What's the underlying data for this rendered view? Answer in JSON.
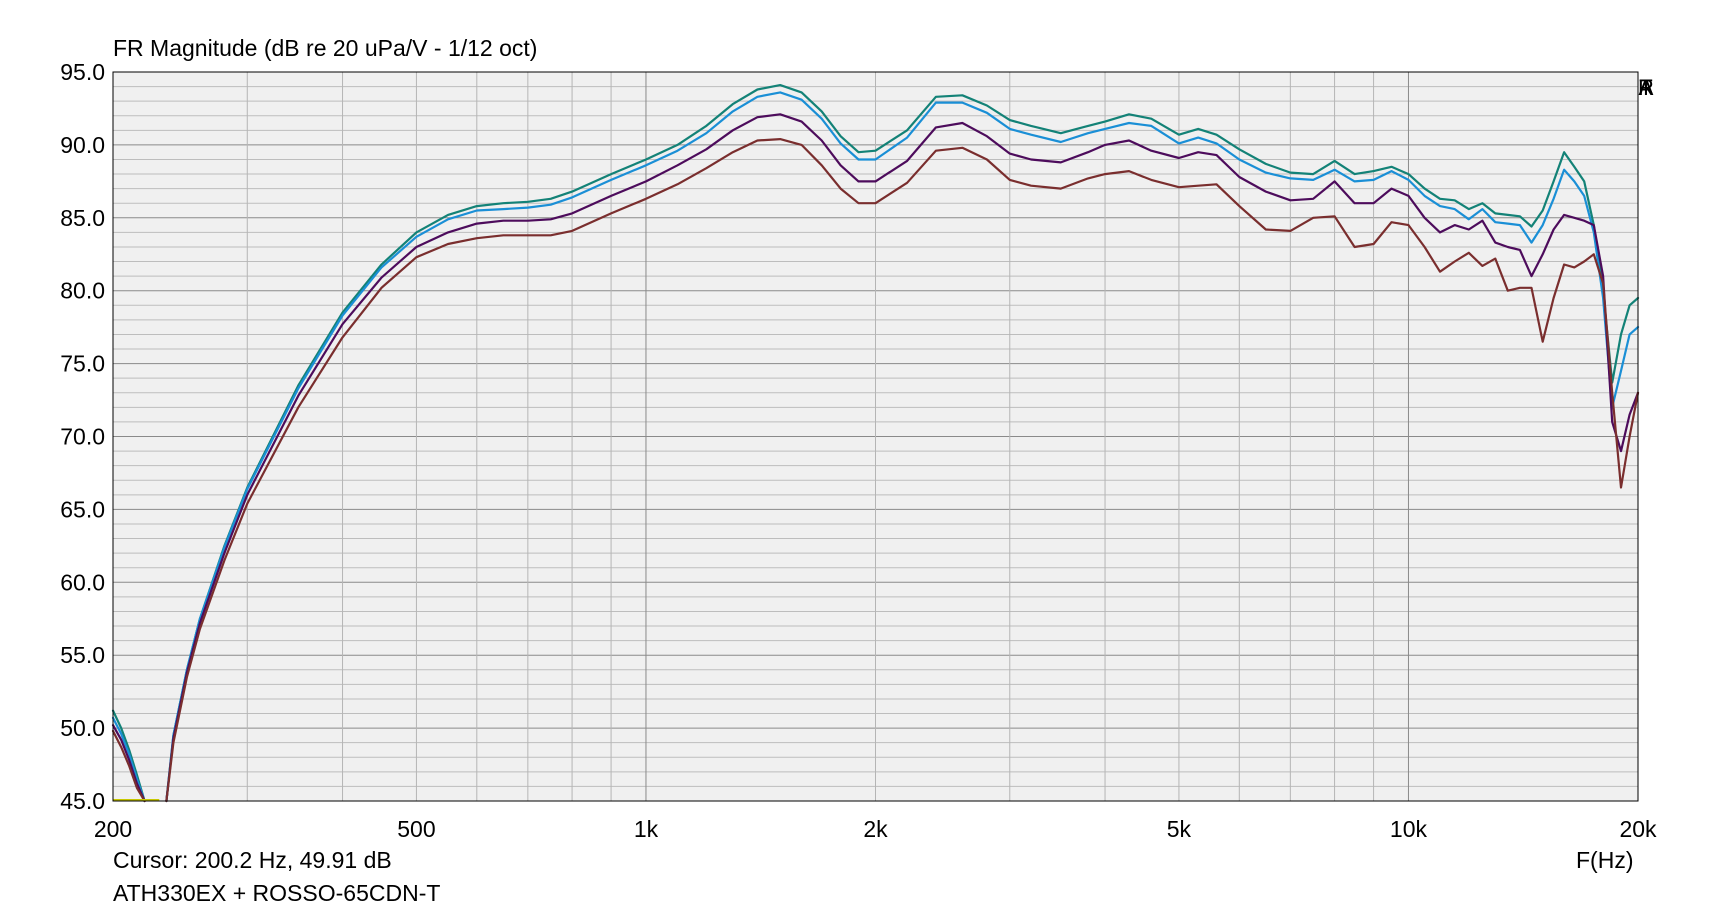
{
  "window": {
    "title": "FR Magnitude (dB re 20 uPa/V - 1/12 oct)",
    "cursor_readout": "Cursor: 200.2 Hz, 49.91 dB",
    "device_label": "ATH330EX + ROSSO-65CDN-T",
    "brand_letters": [
      "A",
      "R",
      "T",
      "A"
    ]
  },
  "chart_data": {
    "type": "line",
    "title": "FR Magnitude (dB re 20 uPa/V - 1/12 oct)",
    "xlabel": "F(Hz)",
    "ylabel": "",
    "x_scale": "log",
    "xlim": [
      200,
      20000
    ],
    "ylim": [
      45,
      95
    ],
    "grid": true,
    "x_ticks": [
      {
        "value": 200,
        "label": "200"
      },
      {
        "value": 500,
        "label": "500"
      },
      {
        "value": 1000,
        "label": "1k"
      },
      {
        "value": 2000,
        "label": "2k"
      },
      {
        "value": 5000,
        "label": "5k"
      },
      {
        "value": 10000,
        "label": "10k"
      },
      {
        "value": 20000,
        "label": "20k"
      }
    ],
    "y_ticks": [
      {
        "value": 95,
        "label": "95.0"
      },
      {
        "value": 90,
        "label": "90.0"
      },
      {
        "value": 85,
        "label": "85.0"
      },
      {
        "value": 80,
        "label": "80.0"
      },
      {
        "value": 75,
        "label": "75.0"
      },
      {
        "value": 70,
        "label": "70.0"
      },
      {
        "value": 65,
        "label": "65.0"
      },
      {
        "value": 60,
        "label": "60.0"
      },
      {
        "value": 55,
        "label": "55.0"
      },
      {
        "value": 50,
        "label": "50.0"
      },
      {
        "value": 45,
        "label": "45.0"
      }
    ],
    "cursor_marker": {
      "x": [
        200,
        230
      ],
      "y": 45,
      "color": "#c8c800"
    },
    "series": [
      {
        "color": "#138277",
        "low_segment": {
          "x": [
            200,
            205,
            210,
            215,
            220
          ],
          "y": [
            51.2,
            50.0,
            48.5,
            46.8,
            45
          ]
        },
        "x": [
          235,
          240,
          250,
          260,
          280,
          300,
          350,
          400,
          450,
          500,
          550,
          600,
          650,
          700,
          750,
          800,
          900,
          1000,
          1100,
          1200,
          1300,
          1400,
          1500,
          1600,
          1700,
          1800,
          1900,
          2000,
          2200,
          2400,
          2600,
          2800,
          3000,
          3200,
          3500,
          3800,
          4000,
          4300,
          4600,
          5000,
          5300,
          5600,
          6000,
          6500,
          7000,
          7500,
          8000,
          8500,
          9000,
          9500,
          10000,
          10500,
          11000,
          11500,
          12000,
          12500,
          13000,
          13500,
          14000,
          14500,
          15000,
          15500,
          16000,
          16500,
          17000,
          17500,
          18000,
          18500,
          19000,
          19500,
          20000
        ],
        "y": [
          45,
          49.5,
          54,
          57.5,
          62.5,
          66.5,
          73.5,
          78.5,
          81.8,
          84.0,
          85.2,
          85.8,
          86.0,
          86.1,
          86.3,
          86.8,
          88.0,
          89.0,
          90.0,
          91.3,
          92.8,
          93.8,
          94.1,
          93.6,
          92.3,
          90.6,
          89.5,
          89.6,
          91.0,
          93.3,
          93.4,
          92.7,
          91.7,
          91.3,
          90.8,
          91.3,
          91.6,
          92.1,
          91.8,
          90.7,
          91.1,
          90.7,
          89.7,
          88.7,
          88.1,
          88.0,
          88.9,
          88.0,
          88.2,
          88.5,
          88.0,
          87.0,
          86.3,
          86.2,
          85.6,
          86.0,
          85.3,
          85.2,
          85.1,
          84.4,
          85.5,
          87.5,
          89.5,
          88.5,
          87.5,
          84.5,
          80.0,
          73.7,
          77.0,
          79.0,
          79.5
        ]
      },
      {
        "color": "#1a8fd6",
        "low_segment": {
          "x": [
            200,
            205,
            210,
            215,
            220
          ],
          "y": [
            50.7,
            49.6,
            48.2,
            46.5,
            45
          ]
        },
        "x": [
          235,
          240,
          250,
          260,
          280,
          300,
          350,
          400,
          450,
          500,
          550,
          600,
          650,
          700,
          750,
          800,
          900,
          1000,
          1100,
          1200,
          1300,
          1400,
          1500,
          1600,
          1700,
          1800,
          1900,
          2000,
          2200,
          2400,
          2600,
          2800,
          3000,
          3200,
          3500,
          3800,
          4000,
          4300,
          4600,
          5000,
          5300,
          5600,
          6000,
          6500,
          7000,
          7500,
          8000,
          8500,
          9000,
          9500,
          10000,
          10500,
          11000,
          11500,
          12000,
          12500,
          13000,
          13500,
          14000,
          14500,
          15000,
          15500,
          16000,
          16500,
          17000,
          17500,
          18000,
          18500,
          19000,
          19500,
          20000
        ],
        "y": [
          45,
          49.5,
          54,
          57.5,
          62.4,
          66.4,
          73.3,
          78.3,
          81.6,
          83.7,
          84.9,
          85.5,
          85.6,
          85.7,
          85.9,
          86.4,
          87.6,
          88.6,
          89.6,
          90.8,
          92.3,
          93.3,
          93.6,
          93.1,
          91.8,
          90.1,
          89.0,
          89.0,
          90.5,
          92.9,
          92.9,
          92.2,
          91.1,
          90.7,
          90.2,
          90.8,
          91.1,
          91.5,
          91.3,
          90.1,
          90.5,
          90.1,
          89.0,
          88.1,
          87.7,
          87.6,
          88.3,
          87.5,
          87.6,
          88.2,
          87.6,
          86.5,
          85.8,
          85.6,
          84.9,
          85.6,
          84.7,
          84.6,
          84.5,
          83.3,
          84.5,
          86.3,
          88.3,
          87.5,
          86.5,
          84.0,
          79.5,
          72.0,
          74.5,
          77.0,
          77.5
        ]
      },
      {
        "color": "#4d0c5c",
        "low_segment": {
          "x": [
            200,
            205,
            210,
            215,
            220
          ],
          "y": [
            50.2,
            49.2,
            47.8,
            46.2,
            45
          ]
        },
        "x": [
          235,
          240,
          250,
          260,
          280,
          300,
          350,
          400,
          450,
          500,
          550,
          600,
          650,
          700,
          750,
          800,
          900,
          1000,
          1100,
          1200,
          1300,
          1400,
          1500,
          1600,
          1700,
          1800,
          1900,
          2000,
          2200,
          2400,
          2600,
          2800,
          3000,
          3200,
          3500,
          3800,
          4000,
          4300,
          4600,
          5000,
          5300,
          5600,
          6000,
          6500,
          7000,
          7500,
          8000,
          8500,
          9000,
          9500,
          10000,
          10500,
          11000,
          11500,
          12000,
          12500,
          13000,
          13500,
          14000,
          14500,
          15000,
          15500,
          16000,
          16500,
          17000,
          17500,
          18000,
          18500,
          19000,
          19500,
          20000
        ],
        "y": [
          45,
          49.3,
          53.8,
          57.2,
          62.0,
          66.0,
          72.8,
          77.7,
          80.9,
          83.0,
          84.0,
          84.6,
          84.8,
          84.8,
          84.9,
          85.3,
          86.5,
          87.5,
          88.6,
          89.7,
          91.0,
          91.9,
          92.1,
          91.6,
          90.3,
          88.6,
          87.5,
          87.5,
          88.9,
          91.2,
          91.5,
          90.6,
          89.4,
          89.0,
          88.8,
          89.5,
          90.0,
          90.3,
          89.6,
          89.1,
          89.5,
          89.3,
          87.8,
          86.8,
          86.2,
          86.3,
          87.5,
          86.0,
          86.0,
          87.0,
          86.5,
          85.0,
          84.0,
          84.5,
          84.2,
          84.8,
          83.3,
          83.0,
          82.8,
          81.0,
          82.5,
          84.2,
          85.2,
          85.0,
          84.8,
          84.5,
          81.0,
          71.0,
          69.0,
          71.5,
          73.0
        ]
      },
      {
        "color": "#7a2e2e",
        "low_segment": {
          "x": [
            200,
            205,
            210,
            215,
            220
          ],
          "y": [
            49.8,
            48.7,
            47.4,
            45.9,
            45
          ]
        },
        "x": [
          235,
          240,
          250,
          260,
          280,
          300,
          350,
          400,
          450,
          500,
          550,
          600,
          650,
          700,
          750,
          800,
          900,
          1000,
          1100,
          1200,
          1300,
          1400,
          1500,
          1600,
          1700,
          1800,
          1900,
          2000,
          2200,
          2400,
          2600,
          2800,
          3000,
          3200,
          3500,
          3800,
          4000,
          4300,
          4600,
          5000,
          5300,
          5600,
          6000,
          6500,
          7000,
          7500,
          8000,
          8500,
          9000,
          9500,
          10000,
          10500,
          11000,
          11500,
          12000,
          12500,
          13000,
          13500,
          14000,
          14500,
          15000,
          15500,
          16000,
          16500,
          17000,
          17500,
          18000,
          18500,
          19000,
          19500,
          20000
        ],
        "y": [
          45,
          49.0,
          53.5,
          56.8,
          61.5,
          65.4,
          72.0,
          76.8,
          80.2,
          82.3,
          83.2,
          83.6,
          83.8,
          83.8,
          83.8,
          84.1,
          85.3,
          86.3,
          87.3,
          88.4,
          89.5,
          90.3,
          90.4,
          90.0,
          88.6,
          87.0,
          86.0,
          86.0,
          87.4,
          89.6,
          89.8,
          89.0,
          87.6,
          87.2,
          87.0,
          87.7,
          88.0,
          88.2,
          87.6,
          87.1,
          87.2,
          87.3,
          85.8,
          84.2,
          84.1,
          85.0,
          85.1,
          83.0,
          83.2,
          84.7,
          84.5,
          83.0,
          81.3,
          82.0,
          82.6,
          81.7,
          82.2,
          80.0,
          80.2,
          80.2,
          76.5,
          79.5,
          81.8,
          81.6,
          82.0,
          82.5,
          80.5,
          73.0,
          66.5,
          70.0,
          73.0
        ]
      }
    ]
  }
}
